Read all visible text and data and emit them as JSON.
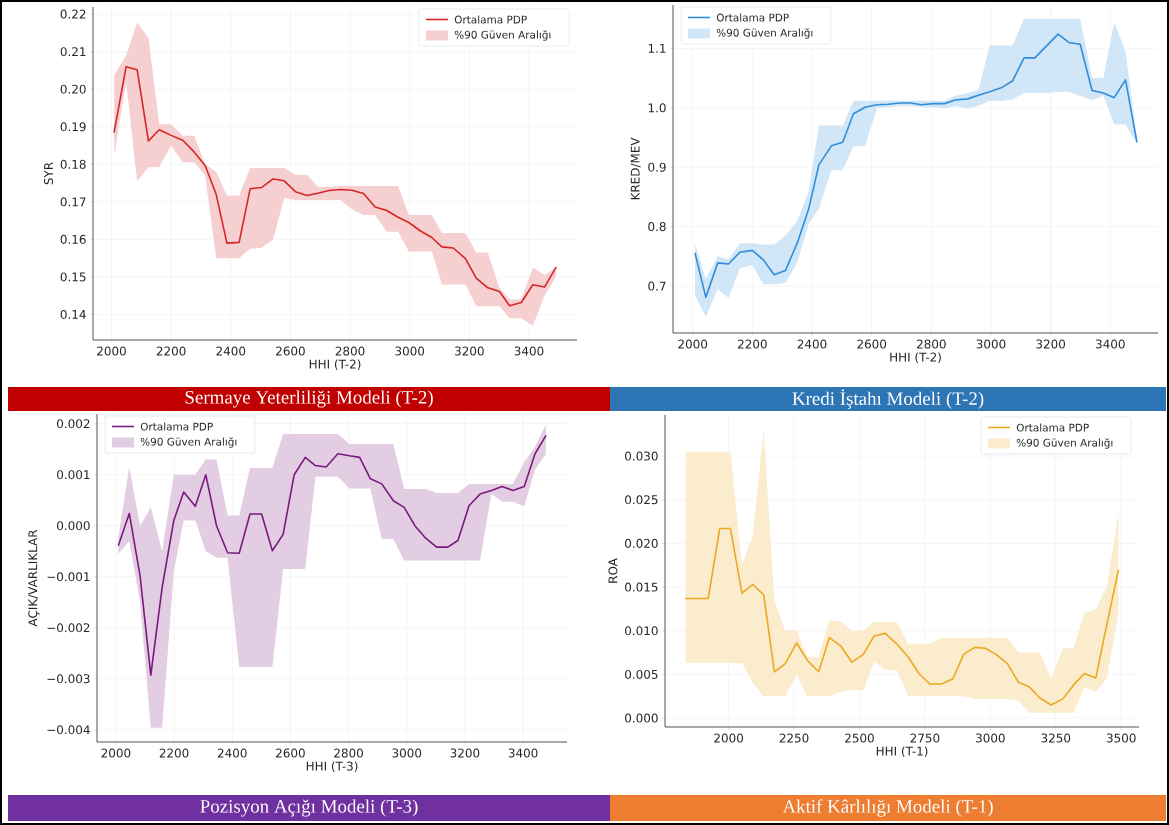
{
  "chart_data": [
    {
      "type": "line",
      "title": "Sermaye Yeterliliği Modeli (T-2)",
      "xlabel": "HHI (T-2)",
      "ylabel": "SYR",
      "grid": true,
      "legend": "top right",
      "annotations": [
        "%90 Güven Aralığı"
      ],
      "x": [
        2009,
        2049,
        2086,
        2124,
        2160,
        2200,
        2239,
        2277,
        2314,
        2351,
        2387,
        2428,
        2465,
        2503,
        2542,
        2579,
        2617,
        2655,
        2692,
        2730,
        2768,
        2806,
        2845,
        2884,
        2923,
        2961,
        2997,
        3035,
        3074,
        3108,
        3146,
        3187,
        3223,
        3262,
        3301,
        3335,
        3374,
        3413,
        3452,
        3490
      ],
      "series": [
        {
          "name": "Ortalama PDP",
          "color": "#d62728",
          "values": [
            0.1886,
            0.206,
            0.2052,
            0.1862,
            0.1892,
            0.1877,
            0.1864,
            0.1833,
            0.1797,
            0.172,
            0.159,
            0.1592,
            0.1735,
            0.1738,
            0.1761,
            0.1756,
            0.1727,
            0.1717,
            0.1723,
            0.173,
            0.1733,
            0.1731,
            0.1722,
            0.1686,
            0.1677,
            0.1659,
            0.1645,
            0.1623,
            0.1605,
            0.158,
            0.1577,
            0.1549,
            0.1497,
            0.1471,
            0.1461,
            0.1423,
            0.1432,
            0.1479,
            0.1473,
            0.1525
          ],
          "lower": [
            0.1823,
            0.2022,
            0.1755,
            0.1792,
            0.1793,
            0.185,
            0.1805,
            0.1805,
            0.177,
            0.155,
            0.155,
            0.155,
            0.1575,
            0.1578,
            0.16,
            0.171,
            0.1705,
            0.1705,
            0.1705,
            0.1705,
            0.1705,
            0.168,
            0.1665,
            0.1665,
            0.162,
            0.162,
            0.1568,
            0.1568,
            0.1568,
            0.148,
            0.148,
            0.148,
            0.1422,
            0.1422,
            0.1422,
            0.139,
            0.139,
            0.137,
            0.145,
            0.15
          ],
          "upper": [
            0.2037,
            0.209,
            0.2178,
            0.2137,
            0.1907,
            0.1907,
            0.1876,
            0.1876,
            0.18,
            0.178,
            0.1717,
            0.1717,
            0.179,
            0.179,
            0.179,
            0.179,
            0.1772,
            0.1772,
            0.174,
            0.174,
            0.1742,
            0.1742,
            0.1742,
            0.1742,
            0.1742,
            0.1742,
            0.1665,
            0.1665,
            0.1665,
            0.1617,
            0.1617,
            0.1617,
            0.1565,
            0.1565,
            0.147,
            0.144,
            0.144,
            0.1525,
            0.1505,
            0.1525
          ]
        }
      ],
      "xlim": [
        1938,
        3561
      ],
      "ylim": [
        0.1332,
        0.2219
      ],
      "xticks": [
        2000,
        2200,
        2400,
        2600,
        2800,
        3000,
        3200,
        3400
      ],
      "yticks": [
        {
          "value": 0.14,
          "label": "0.14"
        },
        {
          "value": 0.15,
          "label": "0.15"
        },
        {
          "value": 0.16,
          "label": "0.16"
        },
        {
          "value": 0.17,
          "label": "0.17"
        },
        {
          "value": 0.18,
          "label": "0.18"
        },
        {
          "value": 0.19,
          "label": "0.19"
        },
        {
          "value": 0.2,
          "label": "0.20"
        },
        {
          "value": 0.21,
          "label": "0.21"
        },
        {
          "value": 0.22,
          "label": "0.22"
        }
      ]
    },
    {
      "type": "line",
      "title": "Kredi İştahı Modeli (T-2)",
      "xlabel": "HHI (T-2)",
      "ylabel": "KRED/MEV",
      "grid": true,
      "legend": "top left",
      "annotations": [
        "%90 Güven Aralığı"
      ],
      "x": [
        2008,
        2044,
        2084,
        2120,
        2158,
        2200,
        2237,
        2273,
        2311,
        2351,
        2389,
        2423,
        2465,
        2503,
        2539,
        2578,
        2618,
        2656,
        2695,
        2731,
        2766,
        2808,
        2844,
        2880,
        2922,
        2958,
        2996,
        3036,
        3072,
        3111,
        3147,
        3186,
        3225,
        3261,
        3299,
        3339,
        3377,
        3413,
        3451,
        3489
      ],
      "series": [
        {
          "name": "Ortalama PDP",
          "color": "#2f8ddb",
          "values": [
            0.755,
            0.681,
            0.739,
            0.737,
            0.757,
            0.76,
            0.744,
            0.719,
            0.726,
            0.773,
            0.83,
            0.904,
            0.936,
            0.942,
            0.99,
            1.001,
            1.005,
            1.006,
            1.008,
            1.008,
            1.005,
            1.007,
            1.007,
            1.013,
            1.015,
            1.021,
            1.027,
            1.034,
            1.045,
            1.084,
            1.084,
            1.104,
            1.124,
            1.11,
            1.107,
            1.029,
            1.025,
            1.017,
            1.047,
            0.943
          ],
          "lower": [
            0.685,
            0.648,
            0.695,
            0.68,
            0.73,
            0.735,
            0.703,
            0.703,
            0.705,
            0.74,
            0.805,
            0.83,
            0.895,
            0.895,
            0.935,
            0.936,
            1.0,
            1.001,
            1.003,
            1.003,
            1.001,
            1.001,
            0.999,
            1.003,
            0.999,
            1.003,
            1.012,
            1.012,
            1.014,
            1.025,
            1.025,
            1.025,
            1.027,
            1.027,
            1.02,
            1.013,
            1.02,
            0.972,
            0.972,
            0.94
          ],
          "upper": [
            0.77,
            0.712,
            0.75,
            0.745,
            0.772,
            0.772,
            0.77,
            0.77,
            0.785,
            0.81,
            0.86,
            0.97,
            0.97,
            0.97,
            1.012,
            1.012,
            1.012,
            1.012,
            1.012,
            1.012,
            1.012,
            1.012,
            1.012,
            1.02,
            1.025,
            1.03,
            1.105,
            1.105,
            1.105,
            1.15,
            1.15,
            1.15,
            1.15,
            1.15,
            1.15,
            1.05,
            1.05,
            1.145,
            1.095,
            0.95
          ]
        }
      ],
      "xlim": [
        1934,
        3560
      ],
      "ylim": [
        0.621,
        1.173
      ],
      "xticks": [
        2000,
        2200,
        2400,
        2600,
        2800,
        3000,
        3200,
        3400
      ],
      "yticks": [
        {
          "value": 0.7,
          "label": "0.7"
        },
        {
          "value": 0.8,
          "label": "0.8"
        },
        {
          "value": 0.9,
          "label": "0.9"
        },
        {
          "value": 1.0,
          "label": "1.0"
        },
        {
          "value": 1.1,
          "label": "1.1"
        }
      ]
    },
    {
      "type": "line",
      "title": "Pozisyon Açığı Modeli (T-3)",
      "xlabel": "HHI (T-3)",
      "ylabel": "AÇIK/VARLIKLAR",
      "grid": true,
      "legend": "top left",
      "annotations": [
        "%90 Güven Aralığı"
      ],
      "x": [
        2009,
        2046,
        2083,
        2120,
        2159,
        2199,
        2233,
        2273,
        2309,
        2346,
        2384,
        2424,
        2461,
        2501,
        2538,
        2575,
        2613,
        2651,
        2686,
        2723,
        2763,
        2803,
        2838,
        2875,
        2914,
        2954,
        2991,
        3028,
        3066,
        3103,
        3141,
        3176,
        3214,
        3252,
        3291,
        3328,
        3365,
        3404,
        3441,
        3478
      ],
      "series": [
        {
          "name": "Ortalama PDP",
          "color": "#7b1a7e",
          "values": [
            -0.00038,
            0.00024,
            -0.00098,
            -0.00293,
            -0.00121,
            0.0001,
            0.00066,
            0.00038,
            0.001,
            0.0,
            -0.00053,
            -0.00054,
            0.00023,
            0.00023,
            -0.00049,
            -0.00017,
            0.001,
            0.00134,
            0.00118,
            0.00115,
            0.00141,
            0.00137,
            0.00134,
            0.00092,
            0.00082,
            0.00049,
            0.00036,
            0.0,
            -0.00025,
            -0.00042,
            -0.00042,
            -0.00029,
            0.00039,
            0.00062,
            0.00069,
            0.00077,
            0.00069,
            0.00077,
            0.00141,
            0.00176
          ],
          "lower": [
            -0.00055,
            -0.0003,
            -0.0015,
            -0.00396,
            -0.00396,
            -0.0009,
            0.0001,
            0.0001,
            -0.0005,
            -0.00063,
            -0.00063,
            -0.00277,
            -0.00277,
            -0.00277,
            -0.00277,
            -0.00085,
            -0.00085,
            -0.00085,
            0.00096,
            0.00096,
            0.00096,
            0.00073,
            0.00073,
            0.00073,
            -0.00026,
            -0.00026,
            -0.00068,
            -0.00068,
            -0.00068,
            -0.00068,
            -0.00068,
            -0.00068,
            -0.00068,
            -0.00068,
            0.00062,
            0.00047,
            0.00047,
            0.00038,
            0.0011,
            0.0014
          ],
          "upper": [
            -0.0002,
            0.00115,
            0.0,
            0.00036,
            -0.0005,
            0.001,
            0.001,
            0.001,
            0.0013,
            0.0013,
            0.0002,
            0.0002,
            0.00113,
            0.00113,
            0.00113,
            0.0018,
            0.0018,
            0.0018,
            0.0018,
            0.0018,
            0.0018,
            0.0016,
            0.0016,
            0.0016,
            0.0016,
            0.0016,
            0.00072,
            0.00072,
            0.00072,
            0.00064,
            0.00064,
            0.00064,
            0.00082,
            0.00082,
            0.00082,
            0.00082,
            0.00082,
            0.00125,
            0.00155,
            0.00198
          ]
        }
      ],
      "xlim": [
        1935,
        3551
      ],
      "ylim": [
        -0.00424,
        0.00219
      ],
      "xticks": [
        2000,
        2200,
        2400,
        2600,
        2800,
        3000,
        3200,
        3400
      ],
      "yticks": [
        {
          "value": -0.004,
          "label": "−0.004"
        },
        {
          "value": -0.003,
          "label": "−0.003"
        },
        {
          "value": -0.002,
          "label": "−0.002"
        },
        {
          "value": -0.001,
          "label": "−0.001"
        },
        {
          "value": 0.0,
          "label": "0.000"
        },
        {
          "value": 0.001,
          "label": "0.001"
        },
        {
          "value": 0.002,
          "label": "0.002"
        }
      ]
    },
    {
      "type": "line",
      "title": "Aktif Kârlılığı Modeli (T-1)",
      "xlabel": "HHI (T-1)",
      "ylabel": "ROA",
      "grid": true,
      "legend": "top right",
      "annotations": [
        "%90 Güven Aralığı"
      ],
      "x": [
        1836,
        1922,
        1966,
        2007,
        2051,
        2093,
        2134,
        2175,
        2216,
        2260,
        2301,
        2344,
        2385,
        2430,
        2471,
        2515,
        2556,
        2598,
        2642,
        2686,
        2727,
        2769,
        2813,
        2857,
        2898,
        2940,
        2981,
        3022,
        3066,
        3107,
        3148,
        3189,
        3232,
        3277,
        3318,
        3359,
        3403,
        3445,
        3489
      ],
      "series": [
        {
          "name": "Ortalama PDP",
          "color": "#eba921",
          "values": [
            0.0137,
            0.0137,
            0.0217,
            0.0217,
            0.0143,
            0.0153,
            0.0141,
            0.0053,
            0.0062,
            0.0086,
            0.0066,
            0.0053,
            0.0092,
            0.0082,
            0.0064,
            0.0073,
            0.0094,
            0.0097,
            0.0085,
            0.007,
            0.0051,
            0.0039,
            0.0039,
            0.0045,
            0.0073,
            0.0081,
            0.008,
            0.0073,
            0.0062,
            0.0041,
            0.0036,
            0.0023,
            0.0015,
            0.0022,
            0.0038,
            0.0051,
            0.0046,
            0.0107,
            0.0169
          ],
          "lower": [
            0.0063,
            0.0063,
            0.0063,
            0.0063,
            0.0063,
            0.004,
            0.0025,
            0.0025,
            0.0025,
            0.005,
            0.0025,
            0.0025,
            0.0025,
            0.003,
            0.0032,
            0.0032,
            0.0065,
            0.0055,
            0.0055,
            0.0025,
            0.0025,
            0.0025,
            0.0025,
            0.0025,
            0.0025,
            0.0022,
            0.0022,
            0.0022,
            0.0022,
            0.002,
            0.0006,
            0.0006,
            0.0006,
            0.0006,
            0.0006,
            0.0035,
            0.003,
            0.0045,
            0.012
          ],
          "upper": [
            0.0305,
            0.0305,
            0.0305,
            0.0305,
            0.0175,
            0.021,
            0.033,
            0.0135,
            0.01,
            0.01,
            0.007,
            0.007,
            0.0112,
            0.011,
            0.01,
            0.01,
            0.011,
            0.011,
            0.011,
            0.0085,
            0.0085,
            0.0085,
            0.0092,
            0.0092,
            0.0092,
            0.0092,
            0.0092,
            0.0092,
            0.0092,
            0.0075,
            0.0075,
            0.0075,
            0.0045,
            0.008,
            0.008,
            0.012,
            0.0125,
            0.015,
            0.0235
          ]
        }
      ],
      "xlim": [
        1757,
        3568
      ],
      "ylim": [
        -0.00102,
        0.0347
      ],
      "xticks": [
        2000,
        2250,
        2500,
        2750,
        3000,
        3250,
        3500
      ],
      "yticks": [
        {
          "value": 0.0,
          "label": "0.000"
        },
        {
          "value": 0.005,
          "label": "0.005"
        },
        {
          "value": 0.01,
          "label": "0.010"
        },
        {
          "value": 0.015,
          "label": "0.015"
        },
        {
          "value": 0.02,
          "label": "0.020"
        },
        {
          "value": 0.025,
          "label": "0.025"
        },
        {
          "value": 0.03,
          "label": "0.030"
        }
      ]
    }
  ]
}
